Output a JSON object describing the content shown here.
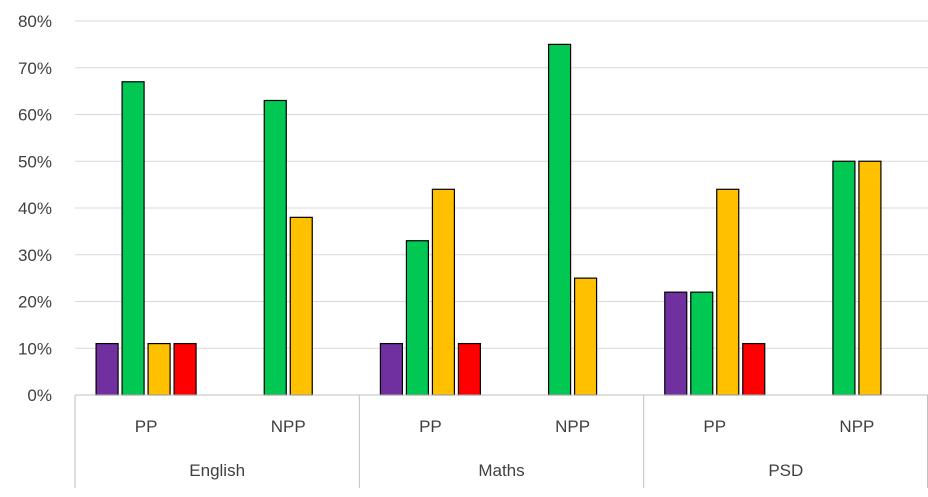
{
  "chart_data": {
    "type": "bar",
    "y_ticks": [
      "0%",
      "10%",
      "20%",
      "30%",
      "40%",
      "50%",
      "60%",
      "70%",
      "80%"
    ],
    "ylim": [
      0,
      80
    ],
    "groups": [
      "English",
      "Maths",
      "PSD"
    ],
    "subcategories": [
      "PP",
      "NPP"
    ],
    "categories": [
      "English PP",
      "English NPP",
      "Maths PP",
      "Maths NPP",
      "PSD PP",
      "PSD NPP"
    ],
    "series": [
      {
        "color": "#7030a0",
        "values": [
          11,
          0,
          11,
          0,
          22,
          0
        ]
      },
      {
        "color": "#00c853",
        "values": [
          67,
          63,
          33,
          75,
          22,
          50
        ]
      },
      {
        "color": "#ffc000",
        "values": [
          11,
          38,
          44,
          25,
          44,
          50
        ]
      },
      {
        "color": "#ff0000",
        "values": [
          11,
          0,
          11,
          0,
          11,
          0
        ]
      }
    ],
    "grid": true,
    "legend": "none"
  }
}
